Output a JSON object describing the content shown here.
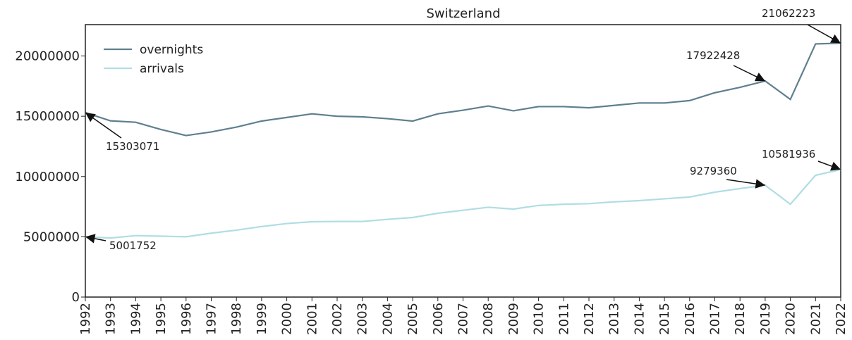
{
  "chart_data": {
    "type": "line",
    "title": "Switzerland",
    "x": [
      1992,
      1993,
      1994,
      1995,
      1996,
      1997,
      1998,
      1999,
      2000,
      2001,
      2002,
      2003,
      2004,
      2005,
      2006,
      2007,
      2008,
      2009,
      2010,
      2011,
      2012,
      2013,
      2014,
      2015,
      2016,
      2017,
      2018,
      2019,
      2020,
      2021,
      2022
    ],
    "xlim": [
      1992,
      2022
    ],
    "ylim": [
      0,
      22600000
    ],
    "yticks": [
      0,
      5000000,
      10000000,
      15000000,
      20000000
    ],
    "legend": "upper left",
    "series": [
      {
        "name": "overnights",
        "color": "#5f7f8f",
        "values": [
          15303071,
          14620000,
          14500000,
          13900000,
          13400000,
          13700000,
          14100000,
          14600000,
          14900000,
          15200000,
          15000000,
          14950000,
          14800000,
          14600000,
          15200000,
          15500000,
          15850000,
          15450000,
          15800000,
          15800000,
          15700000,
          15900000,
          16100000,
          16100000,
          16300000,
          16950000,
          17400000,
          17922428,
          16400000,
          21000000,
          21062223
        ]
      },
      {
        "name": "arrivals",
        "color": "#b0dde4",
        "values": [
          5001752,
          4900000,
          5100000,
          5050000,
          5000000,
          5300000,
          5550000,
          5850000,
          6100000,
          6250000,
          6270000,
          6270000,
          6450000,
          6600000,
          6950000,
          7200000,
          7450000,
          7300000,
          7600000,
          7700000,
          7750000,
          7900000,
          8000000,
          8150000,
          8300000,
          8700000,
          9000000,
          9279360,
          7700000,
          10100000,
          10581936
        ]
      }
    ]
  }
}
